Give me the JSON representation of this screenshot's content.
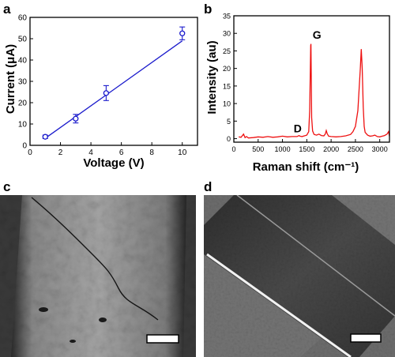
{
  "panels": {
    "a": {
      "label": "a"
    },
    "b": {
      "label": "b"
    },
    "c": {
      "label": "c"
    },
    "d": {
      "label": "d"
    }
  },
  "chart_data": [
    {
      "panel": "a",
      "type": "scatter",
      "xlabel": "Voltage (V)",
      "ylabel": "Current (μA)",
      "xlim": [
        0,
        11
      ],
      "ylim": [
        0,
        60
      ],
      "xticks": [
        0,
        2,
        4,
        6,
        8,
        10
      ],
      "yticks": [
        0,
        10,
        20,
        30,
        40,
        50,
        60
      ],
      "points": [
        {
          "x": 1,
          "y": 4.0,
          "err": 0.8
        },
        {
          "x": 3,
          "y": 12.5,
          "err": 2.0
        },
        {
          "x": 5,
          "y": 24.5,
          "err": 3.5
        },
        {
          "x": 10,
          "y": 52.5,
          "err": 3.0
        }
      ],
      "fit_line": {
        "x": [
          1,
          10
        ],
        "y": [
          3.3,
          49.0
        ]
      },
      "marker": "open-circle",
      "color": "#1a1acc",
      "grid": false
    },
    {
      "panel": "b",
      "type": "line",
      "xlabel": "Raman shift (cm⁻¹)",
      "ylabel": "Intensity (au)",
      "xlim": [
        0,
        3200
      ],
      "ylim": [
        -1,
        35
      ],
      "xticks": [
        0,
        500,
        1000,
        1500,
        2000,
        2500,
        3000
      ],
      "yticks": [
        0,
        5,
        10,
        15,
        20,
        25,
        30,
        35
      ],
      "color": "#ee1111",
      "grid": false,
      "x": [
        100,
        150,
        200,
        230,
        260,
        300,
        400,
        500,
        600,
        700,
        800,
        900,
        1000,
        1100,
        1200,
        1300,
        1340,
        1360,
        1400,
        1450,
        1500,
        1540,
        1560,
        1570,
        1580,
        1585,
        1590,
        1600,
        1620,
        1650,
        1700,
        1750,
        1800,
        1850,
        1880,
        1900,
        1920,
        1950,
        2000,
        2100,
        2200,
        2300,
        2400,
        2450,
        2500,
        2550,
        2600,
        2620,
        2640,
        2660,
        2680,
        2700,
        2750,
        2800,
        2850,
        2900,
        2950,
        3000,
        3050,
        3100,
        3150,
        3180,
        3200
      ],
      "y": [
        0.5,
        0.4,
        1.3,
        0.3,
        0.6,
        0.2,
        0.3,
        0.5,
        0.4,
        0.6,
        0.4,
        0.5,
        0.7,
        0.5,
        0.6,
        0.6,
        0.9,
        0.7,
        0.6,
        0.8,
        1.0,
        2.0,
        8.0,
        18.0,
        26.5,
        27.0,
        20.0,
        6.0,
        2.2,
        1.2,
        1.0,
        1.3,
        0.9,
        0.8,
        1.3,
        2.3,
        1.4,
        0.7,
        0.6,
        0.5,
        0.6,
        0.8,
        1.2,
        2.0,
        3.5,
        8.0,
        20.0,
        25.5,
        20.0,
        9.0,
        3.5,
        1.8,
        1.0,
        0.7,
        0.8,
        1.0,
        0.6,
        0.5,
        0.7,
        0.9,
        1.3,
        2.0,
        0.7
      ],
      "annotations": [
        {
          "text": "G",
          "x": 1620,
          "y": 28.5
        },
        {
          "text": "D",
          "x": 1230,
          "y": 1.8
        }
      ]
    }
  ]
}
